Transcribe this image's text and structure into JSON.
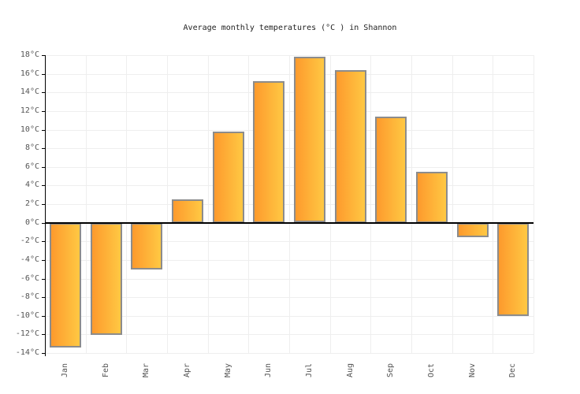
{
  "chart": {
    "title": "Average monthly temperatures (°C ) in Shannon"
  },
  "chart_data": {
    "type": "bar",
    "title": "Average monthly temperatures (°C ) in Shannon",
    "categories": [
      "Jan",
      "Feb",
      "Mar",
      "Apr",
      "May",
      "Jun",
      "Jul",
      "Aug",
      "Sep",
      "Oct",
      "Nov",
      "Dec"
    ],
    "values": [
      -13.4,
      -12,
      -5,
      2.5,
      9.8,
      15.2,
      17.8,
      16.4,
      11.4,
      5.5,
      -1.5,
      -10
    ],
    "unit": "°C",
    "xlabel": "",
    "ylabel": "",
    "ylim": [
      -14,
      18
    ],
    "ytick_step": 2,
    "ytick_suffix": "°C",
    "legend": "none",
    "grid": true,
    "zero_line": true,
    "colors": {
      "bar_gradient_left": "#fd9a2d",
      "bar_gradient_right": "#ffc843",
      "bar_border": "#8c8c8c",
      "gridline": "#eeeeee",
      "axis": "#000000",
      "tick_label": "#545454",
      "title": "#222222",
      "background": "#ffffff"
    }
  }
}
